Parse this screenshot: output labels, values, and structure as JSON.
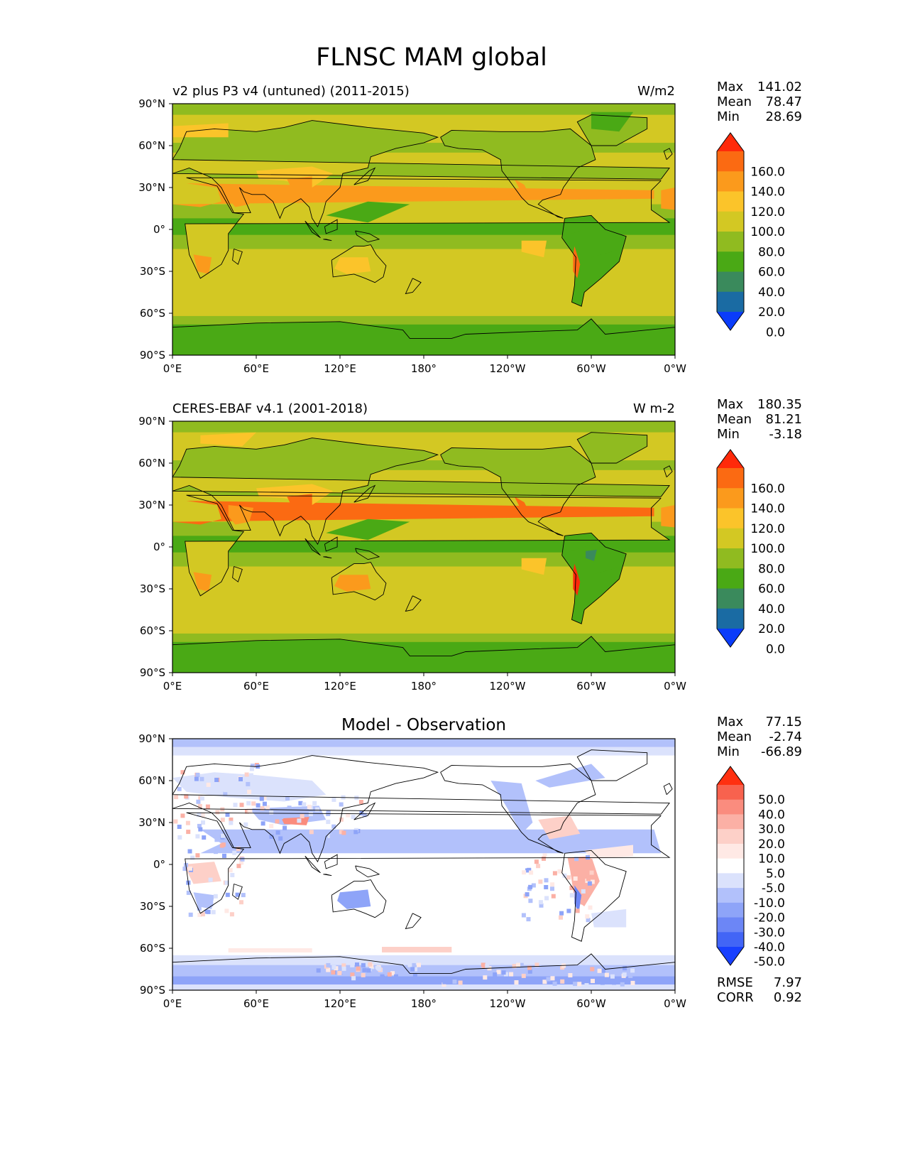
{
  "title": "FLNSC MAM global",
  "lat_ticks": [
    "90°N",
    "60°N",
    "30°N",
    "0°",
    "30°S",
    "60°S",
    "90°S"
  ],
  "lon_ticks": [
    "0°E",
    "60°E",
    "120°E",
    "180°",
    "120°W",
    "60°W",
    "0°W"
  ],
  "stat_labels": {
    "max": "Max",
    "mean": "Mean",
    "min": "Min",
    "rmse": "RMSE",
    "corr": "CORR"
  },
  "panels": [
    {
      "left_title": "v2 plus P3 v4 (untuned) (2011-2015)",
      "center_title": "",
      "units": "W/m2",
      "stats": {
        "max": "141.02",
        "mean": "78.47",
        "min": "28.69"
      },
      "colorbar": "abs"
    },
    {
      "left_title": "CERES-EBAF v4.1 (2001-2018)",
      "center_title": "",
      "units": "W m-2",
      "stats": {
        "max": "180.35",
        "mean": "81.21",
        "min": "-3.18"
      },
      "colorbar": "abs"
    },
    {
      "left_title": "",
      "center_title": "Model - Observation",
      "units": "",
      "stats": {
        "max": "77.15",
        "mean": "-2.74",
        "min": "-66.89"
      },
      "extra_stats": {
        "rmse": "7.97",
        "corr": "0.92"
      },
      "colorbar": "diff"
    }
  ],
  "colorbars": {
    "abs": {
      "labels": [
        "160.0",
        "140.0",
        "120.0",
        "100.0",
        "80.0",
        "60.0",
        "40.0",
        "20.0",
        "0.0"
      ],
      "colors": [
        "#ff2a0a",
        "#fb6a12",
        "#fb9a1c",
        "#fbc42a",
        "#d3c823",
        "#90bb20",
        "#4aa915",
        "#3a8a5c",
        "#1a6ba3",
        "#0a3cfa"
      ]
    },
    "diff": {
      "labels": [
        "50.0",
        "40.0",
        "30.0",
        "20.0",
        "10.0",
        "5.0",
        "-5.0",
        "-10.0",
        "-20.0",
        "-30.0",
        "-40.0",
        "-50.0"
      ],
      "colors": [
        "#ff3010",
        "#f8624e",
        "#fa8c7e",
        "#fbb0a5",
        "#fdd0c8",
        "#ffe9e5",
        "#ffffff",
        "#dbe2fc",
        "#b2c1fb",
        "#8ea4f8",
        "#6c86f6",
        "#4265f6",
        "#1840ff"
      ]
    }
  }
}
